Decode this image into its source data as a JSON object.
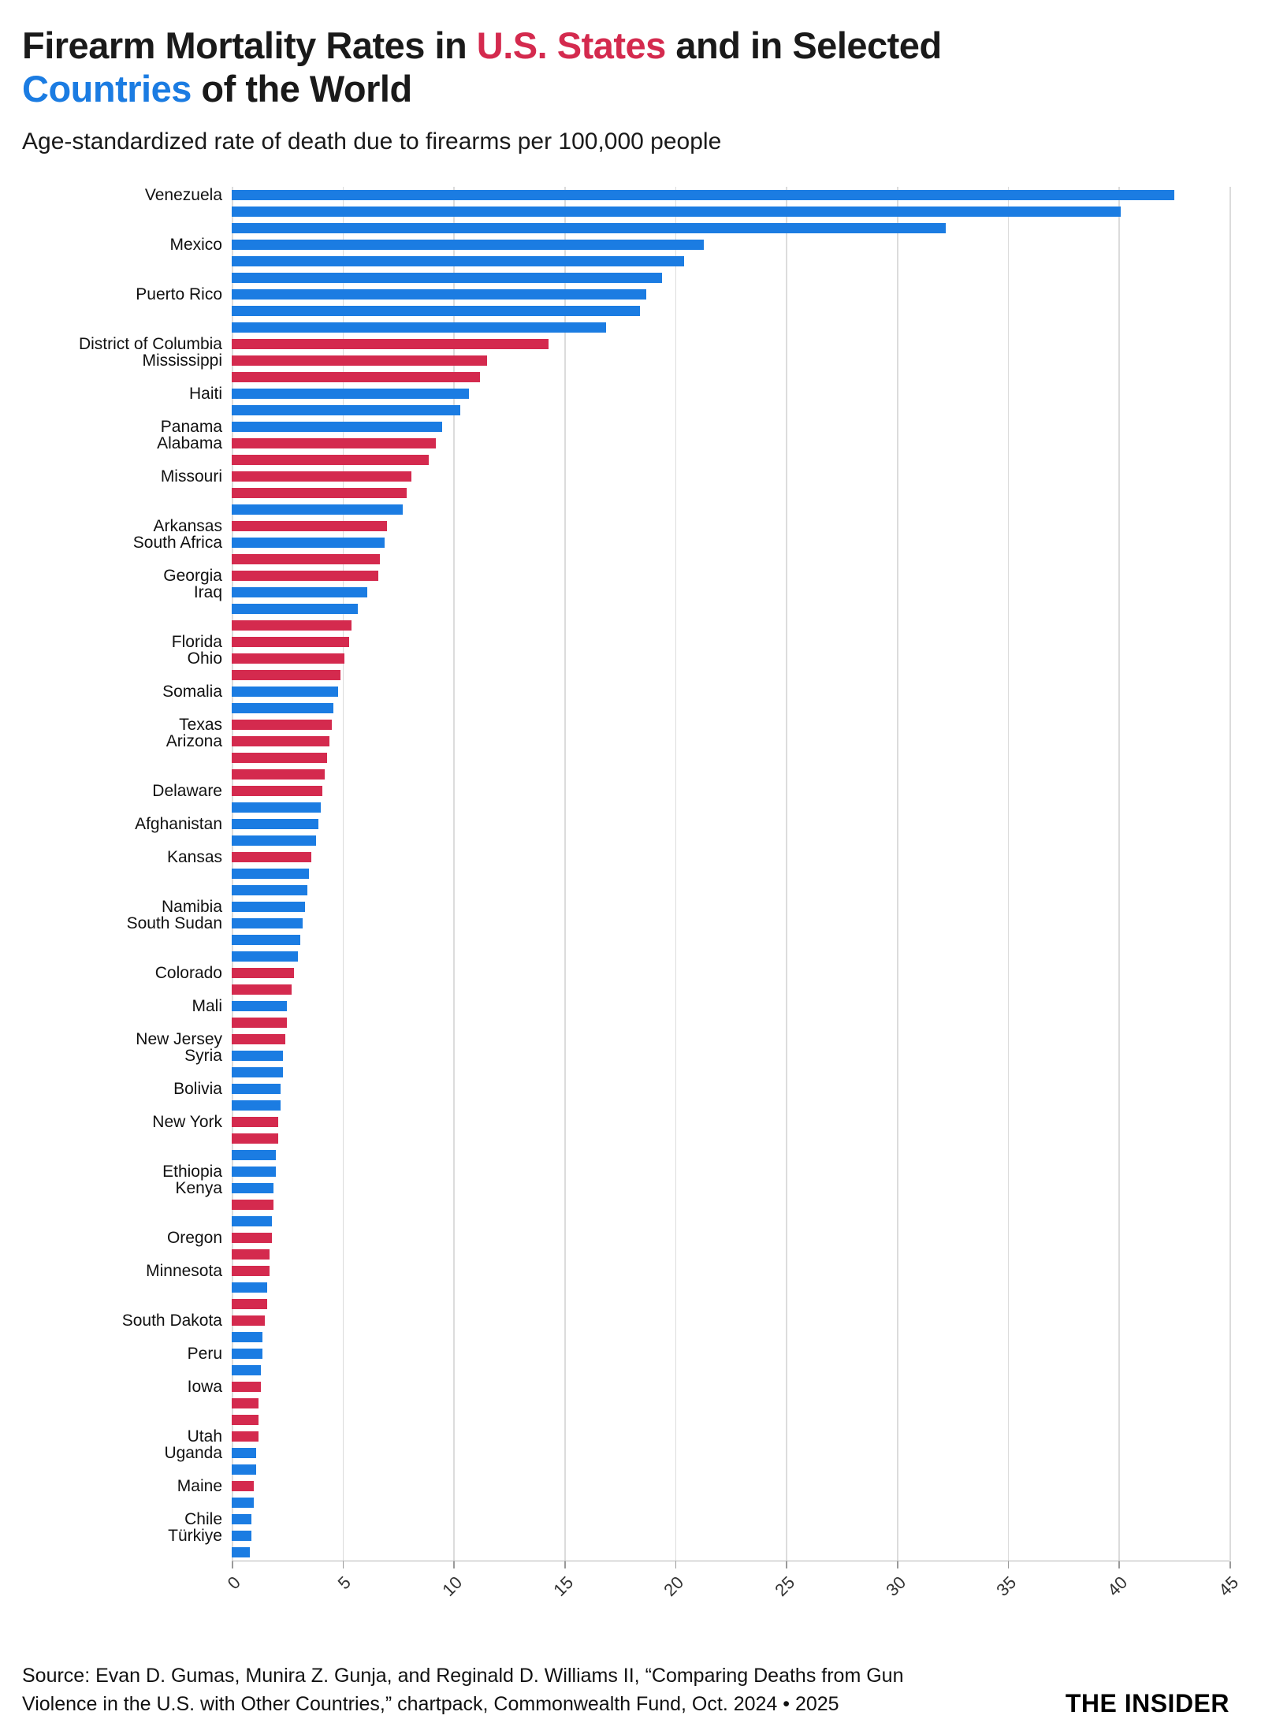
{
  "title": {
    "part1": "Firearm Mortality Rates in ",
    "us_states": "U.S. States",
    "part2": " and in Selected",
    "countries": "Countries",
    "part3": " of the World"
  },
  "subtitle": "Age-standardized rate of death due to firearms per 100,000 people",
  "footer": {
    "line1": "Source: Evan D. Gumas, Munira Z. Gunja, and Reginald D. Williams II, “Comparing Deaths from Gun",
    "line2": "Violence in the U.S. with Other Countries,” chartpack, Commonwealth Fund, Oct. 2024 • 2025"
  },
  "brand": "THE INSIDER",
  "chart_data": {
    "type": "bar",
    "orientation": "horizontal",
    "title": "Firearm Mortality Rates in U.S. States and in Selected Countries of the World",
    "subtitle": "Age-standardized rate of death due to firearms per 100,000 people",
    "xlim": [
      0,
      45
    ],
    "xticks": [
      0,
      5,
      10,
      15,
      20,
      25,
      30,
      35,
      40,
      45
    ],
    "grid": "vertical-gridlines-on",
    "legend": "none; color coding shown in title: red = U.S. states, blue = countries",
    "series_colors": {
      "state": "#d42a4e",
      "country": "#1b7ce2"
    },
    "bars": [
      {
        "label": "Venezuela",
        "value": 42.5,
        "group": "country"
      },
      {
        "label": "",
        "value": 40.1,
        "group": "country"
      },
      {
        "label": "",
        "value": 32.2,
        "group": "country"
      },
      {
        "label": "Mexico",
        "value": 21.3,
        "group": "country"
      },
      {
        "label": "",
        "value": 20.4,
        "group": "country"
      },
      {
        "label": "",
        "value": 19.4,
        "group": "country"
      },
      {
        "label": "Puerto Rico",
        "value": 18.7,
        "group": "country"
      },
      {
        "label": "",
        "value": 18.4,
        "group": "country"
      },
      {
        "label": "",
        "value": 16.9,
        "group": "country"
      },
      {
        "label": "District of Columbia",
        "value": 14.3,
        "group": "state"
      },
      {
        "label": "Mississippi",
        "value": 11.5,
        "group": "state"
      },
      {
        "label": "",
        "value": 11.2,
        "group": "state"
      },
      {
        "label": "Haiti",
        "value": 10.7,
        "group": "country"
      },
      {
        "label": "",
        "value": 10.3,
        "group": "country"
      },
      {
        "label": "Panama",
        "value": 9.5,
        "group": "country"
      },
      {
        "label": "Alabama",
        "value": 9.2,
        "group": "state"
      },
      {
        "label": "",
        "value": 8.9,
        "group": "state"
      },
      {
        "label": "Missouri",
        "value": 8.1,
        "group": "state"
      },
      {
        "label": "",
        "value": 7.9,
        "group": "state"
      },
      {
        "label": "",
        "value": 7.7,
        "group": "country"
      },
      {
        "label": "Arkansas",
        "value": 7.0,
        "group": "state"
      },
      {
        "label": "South Africa",
        "value": 6.9,
        "group": "country"
      },
      {
        "label": "",
        "value": 6.7,
        "group": "state"
      },
      {
        "label": "Georgia",
        "value": 6.6,
        "group": "state"
      },
      {
        "label": "Iraq",
        "value": 6.1,
        "group": "country"
      },
      {
        "label": "",
        "value": 5.7,
        "group": "country"
      },
      {
        "label": "",
        "value": 5.4,
        "group": "state"
      },
      {
        "label": "Florida",
        "value": 5.3,
        "group": "state"
      },
      {
        "label": "Ohio",
        "value": 5.1,
        "group": "state"
      },
      {
        "label": "",
        "value": 4.9,
        "group": "state"
      },
      {
        "label": "Somalia",
        "value": 4.8,
        "group": "country"
      },
      {
        "label": "",
        "value": 4.6,
        "group": "country"
      },
      {
        "label": "Texas",
        "value": 4.5,
        "group": "state"
      },
      {
        "label": "Arizona",
        "value": 4.4,
        "group": "state"
      },
      {
        "label": "",
        "value": 4.3,
        "group": "state"
      },
      {
        "label": "",
        "value": 4.2,
        "group": "state"
      },
      {
        "label": "Delaware",
        "value": 4.1,
        "group": "state"
      },
      {
        "label": "",
        "value": 4.0,
        "group": "country"
      },
      {
        "label": "Afghanistan",
        "value": 3.9,
        "group": "country"
      },
      {
        "label": "",
        "value": 3.8,
        "group": "country"
      },
      {
        "label": "Kansas",
        "value": 3.6,
        "group": "state"
      },
      {
        "label": "",
        "value": 3.5,
        "group": "country"
      },
      {
        "label": "",
        "value": 3.4,
        "group": "country"
      },
      {
        "label": "Namibia",
        "value": 3.3,
        "group": "country"
      },
      {
        "label": "South Sudan",
        "value": 3.2,
        "group": "country"
      },
      {
        "label": "",
        "value": 3.1,
        "group": "country"
      },
      {
        "label": "",
        "value": 3.0,
        "group": "country"
      },
      {
        "label": "Colorado",
        "value": 2.8,
        "group": "state"
      },
      {
        "label": "",
        "value": 2.7,
        "group": "state"
      },
      {
        "label": "Mali",
        "value": 2.5,
        "group": "country"
      },
      {
        "label": "",
        "value": 2.5,
        "group": "state"
      },
      {
        "label": "New Jersey",
        "value": 2.4,
        "group": "state"
      },
      {
        "label": "Syria",
        "value": 2.3,
        "group": "country"
      },
      {
        "label": "",
        "value": 2.3,
        "group": "country"
      },
      {
        "label": "Bolivia",
        "value": 2.2,
        "group": "country"
      },
      {
        "label": "",
        "value": 2.2,
        "group": "country"
      },
      {
        "label": "New York",
        "value": 2.1,
        "group": "state"
      },
      {
        "label": "",
        "value": 2.1,
        "group": "state"
      },
      {
        "label": "",
        "value": 2.0,
        "group": "country"
      },
      {
        "label": "Ethiopia",
        "value": 2.0,
        "group": "country"
      },
      {
        "label": "Kenya",
        "value": 1.9,
        "group": "country"
      },
      {
        "label": "",
        "value": 1.9,
        "group": "state"
      },
      {
        "label": "",
        "value": 1.8,
        "group": "country"
      },
      {
        "label": "Oregon",
        "value": 1.8,
        "group": "state"
      },
      {
        "label": "",
        "value": 1.7,
        "group": "state"
      },
      {
        "label": "Minnesota",
        "value": 1.7,
        "group": "state"
      },
      {
        "label": "",
        "value": 1.6,
        "group": "country"
      },
      {
        "label": "",
        "value": 1.6,
        "group": "state"
      },
      {
        "label": "South Dakota",
        "value": 1.5,
        "group": "state"
      },
      {
        "label": "",
        "value": 1.4,
        "group": "country"
      },
      {
        "label": "Peru",
        "value": 1.4,
        "group": "country"
      },
      {
        "label": "",
        "value": 1.3,
        "group": "country"
      },
      {
        "label": "Iowa",
        "value": 1.3,
        "group": "state"
      },
      {
        "label": "",
        "value": 1.2,
        "group": "state"
      },
      {
        "label": "",
        "value": 1.2,
        "group": "state"
      },
      {
        "label": "Utah",
        "value": 1.2,
        "group": "state"
      },
      {
        "label": "Uganda",
        "value": 1.1,
        "group": "country"
      },
      {
        "label": "",
        "value": 1.1,
        "group": "country"
      },
      {
        "label": "Maine",
        "value": 1.0,
        "group": "state"
      },
      {
        "label": "",
        "value": 1.0,
        "group": "country"
      },
      {
        "label": "Chile",
        "value": 0.9,
        "group": "country"
      },
      {
        "label": "Türkiye",
        "value": 0.9,
        "group": "country"
      },
      {
        "label": "",
        "value": 0.8,
        "group": "country"
      }
    ]
  }
}
